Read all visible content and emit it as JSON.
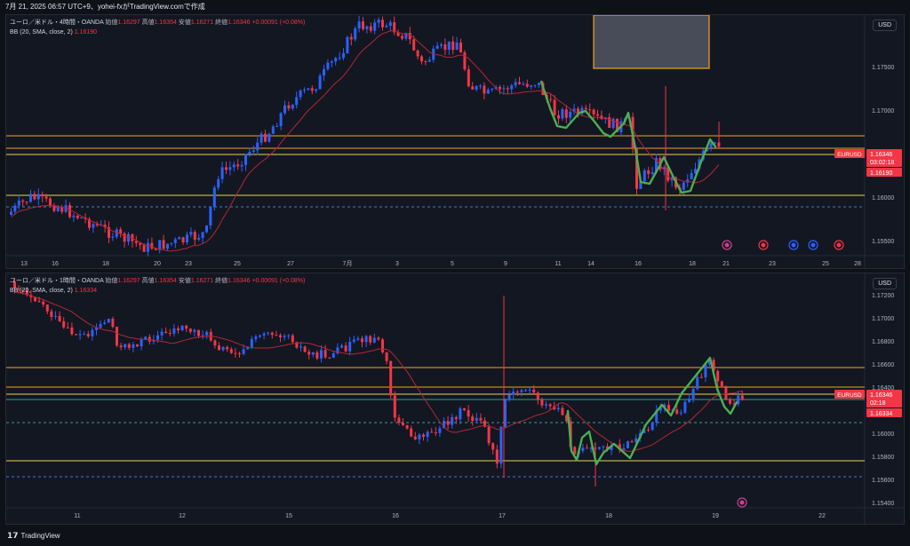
{
  "header": {
    "text": "7月 21, 2025 06:57 UTC+9、yohei-fxがTradingView.comで作成"
  },
  "panel_top": {
    "legend_line1": "ユーロ／米ドル・4時間・OANDA",
    "open_label": "始値",
    "open": "1.16297",
    "high_label": "高値",
    "high": "1.16354",
    "low_label": "安値",
    "low": "1.16271",
    "close_label": "終値",
    "close": "1.16346",
    "change": "+0.00091 (+0.08%)",
    "bb_label": "BB (20, SMA, close, 2)",
    "bb_value": "1.16190",
    "currency": "USD",
    "symbol_tag": "EURUSD",
    "price_tag": "1.16346",
    "countdown": "03:02:18",
    "bb_tag": "1.16190",
    "yaxis": [
      "1.17500",
      "1.17000",
      "1.16500",
      "1.16000",
      "1.15500"
    ],
    "xaxis": [
      "13",
      "16",
      "18",
      "20",
      "23",
      "25",
      "27",
      "7月",
      "3",
      "5",
      "9",
      "11",
      "14",
      "16",
      "18",
      "21",
      "23",
      "25",
      "28"
    ]
  },
  "panel_bottom": {
    "legend_line1": "ユーロ／米ドル・1時間・OANDA",
    "open_label": "始値",
    "open": "1.16297",
    "high_label": "高値",
    "high": "1.16354",
    "low_label": "安値",
    "low": "1.16271",
    "close_label": "終値",
    "close": "1.16346",
    "change": "+0.00091 (+0.08%)",
    "bb_label": "BB (20, SMA, close, 2)",
    "bb_value": "1.16334",
    "currency": "USD",
    "symbol_tag": "EURUSD",
    "price_tag": "1.16346",
    "countdown": "02:18",
    "bb_tag": "1.16334",
    "yaxis": [
      "1.17200",
      "1.17000",
      "1.16800",
      "1.16600",
      "1.16400",
      "1.16200",
      "1.16000",
      "1.15800",
      "1.15600",
      "1.15400"
    ],
    "xaxis": [
      "11",
      "12",
      "15",
      "16",
      "17",
      "18",
      "19",
      "22"
    ]
  },
  "footer": {
    "brand": "TradingView"
  },
  "colors": {
    "up": "#2962ff",
    "down": "#f23645",
    "bb": "#b22833",
    "orange": "#f7a21b",
    "yellow": "#e8d44d",
    "teal": "#26a69a",
    "wave": "#4caf50",
    "bg": "#131722"
  }
}
